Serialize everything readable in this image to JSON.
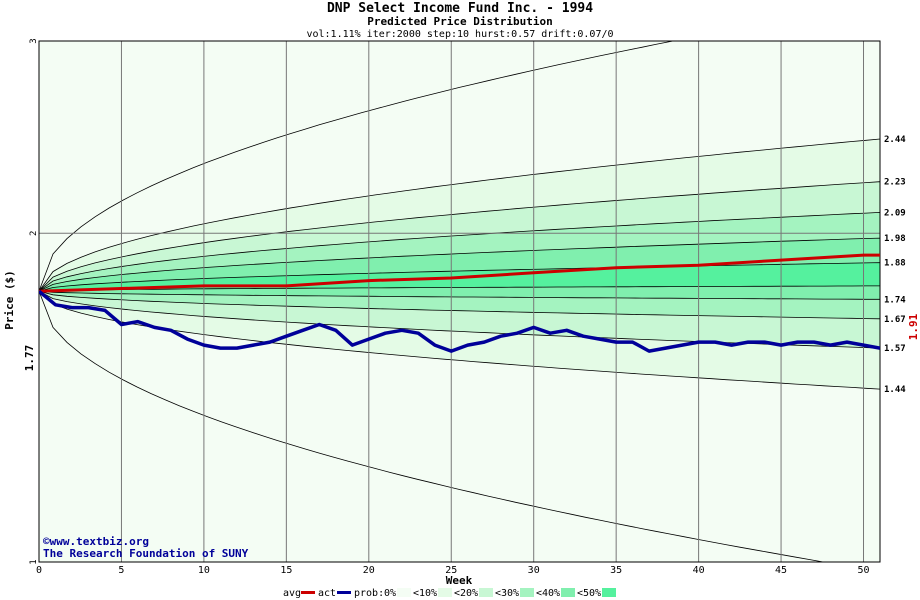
{
  "chart_data": {
    "type": "line",
    "title": "DNP Select Income Fund Inc. - 1994",
    "subtitle": "Predicted Price Distribution",
    "params": "vol:1.11% iter:2000 step:10 hurst:0.57 drift:0.07/0",
    "xlabel": "Week",
    "ylabel": "Price ($)",
    "xlim": [
      0,
      51
    ],
    "ylim": [
      1,
      3
    ],
    "y_scale": "log",
    "x_ticks": [
      0,
      5,
      10,
      15,
      20,
      25,
      30,
      35,
      40,
      45,
      50
    ],
    "y_ticks": [
      1,
      2,
      3
    ],
    "start_value": "1.77",
    "end_value": "1.91",
    "right_labels": [
      "2.44",
      "2.23",
      "2.09",
      "1.98",
      "1.88",
      "1.74",
      "1.67",
      "1.57",
      "1.44"
    ],
    "bands": [
      {
        "name": "<0%",
        "color": "#f4fdf4",
        "end_lower": 0.98,
        "end_upper": 3.25
      },
      {
        "name": "<10%",
        "color": "#e4fbe6",
        "end_lower": 1.44,
        "end_upper": 2.44
      },
      {
        "name": "<20%",
        "color": "#c8f7d4",
        "end_lower": 1.57,
        "end_upper": 2.23
      },
      {
        "name": "<30%",
        "color": "#a4f3c0",
        "end_lower": 1.67,
        "end_upper": 2.09
      },
      {
        "name": "<40%",
        "color": "#80efae",
        "end_lower": 1.74,
        "end_upper": 1.98
      },
      {
        "name": "<50%",
        "color": "#55f19e",
        "end_lower": 1.79,
        "end_upper": 1.88
      }
    ],
    "series": [
      {
        "name": "avg",
        "color": "#cc0000",
        "x": [
          0,
          5,
          10,
          15,
          20,
          25,
          30,
          35,
          40,
          45,
          50,
          51
        ],
        "values": [
          1.77,
          1.78,
          1.79,
          1.79,
          1.81,
          1.82,
          1.84,
          1.86,
          1.87,
          1.89,
          1.91,
          1.91
        ]
      },
      {
        "name": "act",
        "color": "#000099",
        "x": [
          0,
          1,
          2,
          3,
          4,
          5,
          6,
          7,
          8,
          9,
          10,
          11,
          12,
          13,
          14,
          15,
          16,
          17,
          18,
          19,
          20,
          21,
          22,
          23,
          24,
          25,
          26,
          27,
          28,
          29,
          30,
          31,
          32,
          33,
          34,
          35,
          36,
          37,
          38,
          39,
          40,
          41,
          42,
          43,
          44,
          45,
          46,
          47,
          48,
          49,
          50,
          51
        ],
        "values": [
          1.77,
          1.72,
          1.71,
          1.71,
          1.7,
          1.65,
          1.66,
          1.64,
          1.63,
          1.6,
          1.58,
          1.57,
          1.57,
          1.58,
          1.59,
          1.61,
          1.63,
          1.65,
          1.63,
          1.58,
          1.6,
          1.62,
          1.63,
          1.62,
          1.58,
          1.56,
          1.58,
          1.59,
          1.61,
          1.62,
          1.64,
          1.62,
          1.63,
          1.61,
          1.6,
          1.59,
          1.59,
          1.56,
          1.57,
          1.58,
          1.59,
          1.59,
          1.58,
          1.59,
          1.59,
          1.58,
          1.59,
          1.59,
          1.58,
          1.59,
          1.58,
          1.57
        ]
      }
    ],
    "legend": {
      "entries": [
        "avg",
        "act",
        "prob:",
        "0%",
        "<10%",
        "<20%",
        "<30%",
        "<40%",
        "<50%"
      ]
    },
    "credit": [
      "©www.textbiz.org",
      "The Research Foundation of SUNY"
    ]
  }
}
